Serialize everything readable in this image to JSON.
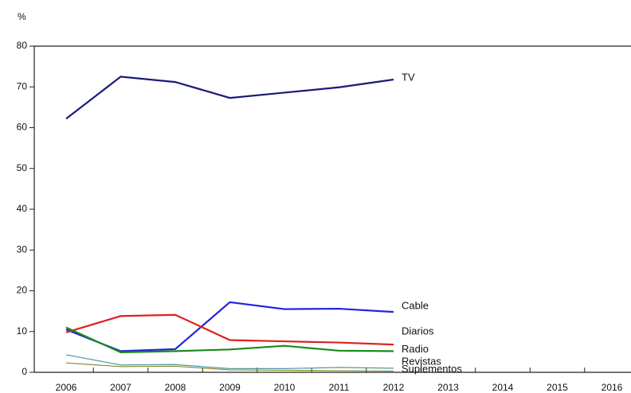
{
  "chart_data": {
    "type": "line",
    "y_label": "%",
    "categories": [
      "2006",
      "2007",
      "2008",
      "2009",
      "2010",
      "2011",
      "2012",
      "2013",
      "2014",
      "2015",
      "2016"
    ],
    "ylim": [
      0,
      80
    ],
    "yticks": [
      0,
      10,
      20,
      30,
      40,
      50,
      60,
      70,
      80
    ],
    "grid": false,
    "series": [
      {
        "name": "TV",
        "color": "#1a1a7a",
        "values": [
          62.2,
          72.5,
          71.2,
          67.3,
          68.6,
          69.9,
          71.8,
          null,
          null,
          null,
          null
        ]
      },
      {
        "name": "Cable",
        "color": "#2222dd",
        "values": [
          10.5,
          5.2,
          5.7,
          17.2,
          15.5,
          15.6,
          14.8,
          null,
          null,
          null,
          null
        ]
      },
      {
        "name": "Diarios",
        "color": "#e02020",
        "values": [
          9.8,
          13.8,
          14.1,
          7.9,
          7.6,
          7.3,
          6.8,
          null,
          null,
          null,
          null
        ]
      },
      {
        "name": "Radio",
        "color": "#1a8a1a",
        "values": [
          11.0,
          4.9,
          5.2,
          5.6,
          6.5,
          5.3,
          5.2,
          null,
          null,
          null,
          null
        ]
      },
      {
        "name": "Revistas",
        "color": "#4a9aa0",
        "values": [
          4.3,
          1.8,
          1.9,
          0.9,
          0.9,
          1.2,
          1.0,
          null,
          null,
          null,
          null
        ]
      },
      {
        "name": "Suplementos",
        "color": "#8a8a30",
        "values": [
          2.3,
          1.4,
          1.5,
          0.6,
          0.5,
          0.4,
          0.3,
          null,
          null,
          null,
          null
        ]
      }
    ]
  }
}
